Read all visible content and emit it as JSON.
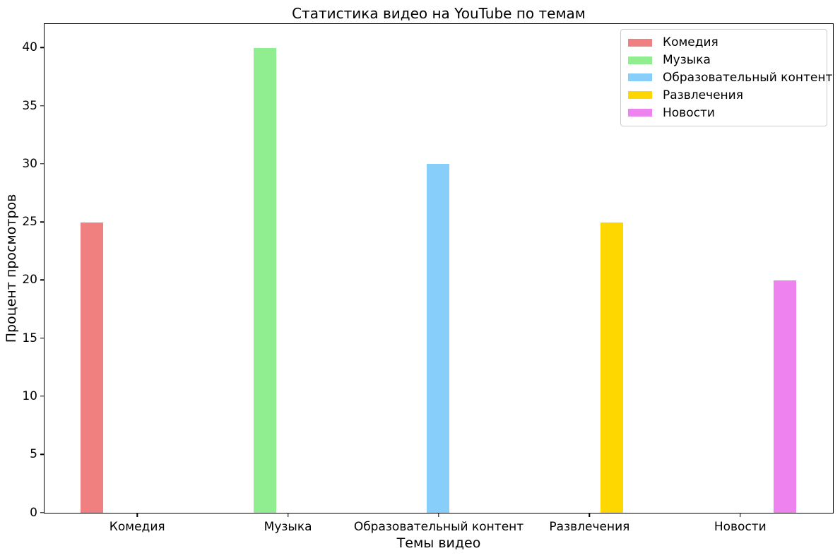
{
  "chart_data": {
    "type": "bar",
    "title": "Статистика видео на YouTube по темам",
    "xlabel": "Темы видео",
    "ylabel": "Процент просмотров",
    "categories": [
      "Комедия",
      "Музыка",
      "Образовательный контент",
      "Развлечения",
      "Новости"
    ],
    "values": [
      25,
      40,
      30,
      25,
      20
    ],
    "colors": [
      "#F08080",
      "#90EE90",
      "#87CEFA",
      "#FFD700",
      "#EE82EE"
    ],
    "yticks": [
      "0",
      "5",
      "10",
      "15",
      "20",
      "25",
      "30",
      "35",
      "40"
    ],
    "ylim": [
      0,
      42
    ],
    "grid": false,
    "legend": {
      "position": "upper right",
      "entries": [
        {
          "label": "Комедия",
          "color": "#F08080"
        },
        {
          "label": "Музыка",
          "color": "#90EE90"
        },
        {
          "label": "Образовательный контент",
          "color": "#87CEFA"
        },
        {
          "label": "Развлечения",
          "color": "#FFD700"
        },
        {
          "label": "Новости",
          "color": "#EE82EE"
        }
      ]
    },
    "bar_layout": {
      "xlim": [
        -0.6125,
        4.6125
      ],
      "bar_width": 0.15,
      "group_offset_step": 0.15
    }
  }
}
